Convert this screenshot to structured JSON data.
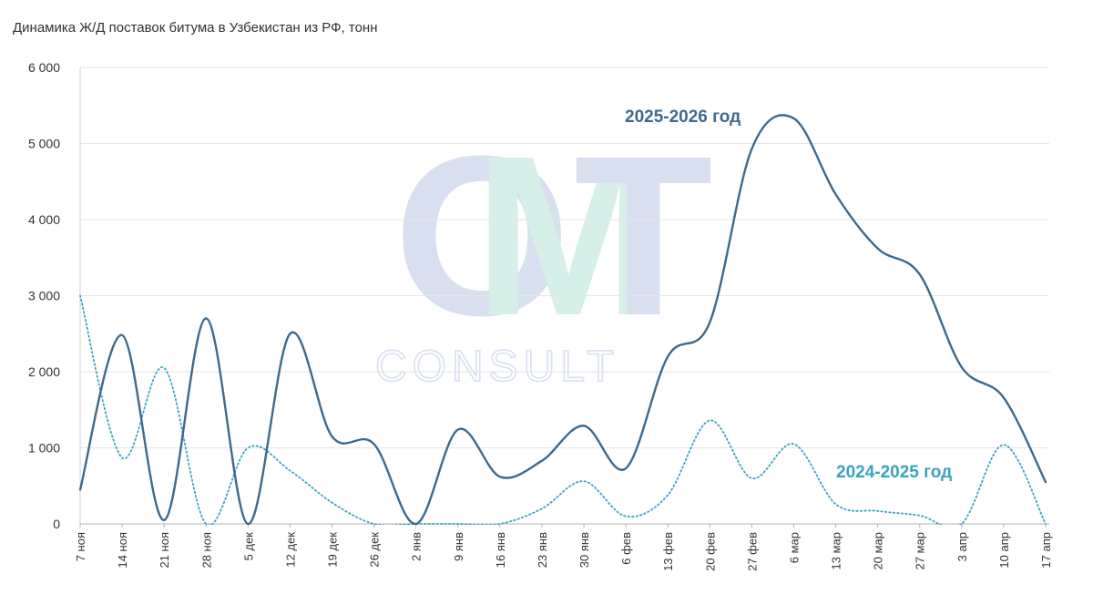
{
  "chart_data": {
    "type": "line",
    "title": "Динамика Ж/Д поставок битума в Узбекистан из РФ, тонн",
    "categories": [
      "7 ноя",
      "14 ноя",
      "21 ноя",
      "28 ноя",
      "5 дек",
      "12 дек",
      "19 дек",
      "26 дек",
      "2 янв",
      "9 янв",
      "16 янв",
      "23 янв",
      "30 янв",
      "6 фев",
      "13 фев",
      "20 фев",
      "27 фев",
      "6 мар",
      "13 мар",
      "20 мар",
      "27 мар",
      "3 апр",
      "10 апр",
      "17 апр"
    ],
    "y_ticks": [
      "0",
      "1 000",
      "2 000",
      "3 000",
      "4 000",
      "5 000",
      "6 000"
    ],
    "ylim": [
      0,
      6000
    ],
    "grid": true,
    "series": [
      {
        "name": "2025-2026 год",
        "color": "#3d6a8c",
        "style": "solid",
        "values": [
          450,
          2480,
          50,
          2700,
          0,
          2500,
          1150,
          1050,
          0,
          1240,
          620,
          830,
          1290,
          730,
          2200,
          2650,
          4930,
          5330,
          4330,
          3620,
          3280,
          2060,
          1660,
          550
        ]
      },
      {
        "name": "2024-2025 год",
        "color": "#3aa2c2",
        "style": "dotted",
        "values": [
          3000,
          870,
          2050,
          0,
          1000,
          700,
          280,
          0,
          0,
          0,
          0,
          200,
          560,
          100,
          380,
          1360,
          600,
          1050,
          260,
          170,
          110,
          0,
          1040,
          0
        ]
      }
    ]
  },
  "watermark": {
    "brand": "OMT",
    "sub": "CONSULT"
  }
}
